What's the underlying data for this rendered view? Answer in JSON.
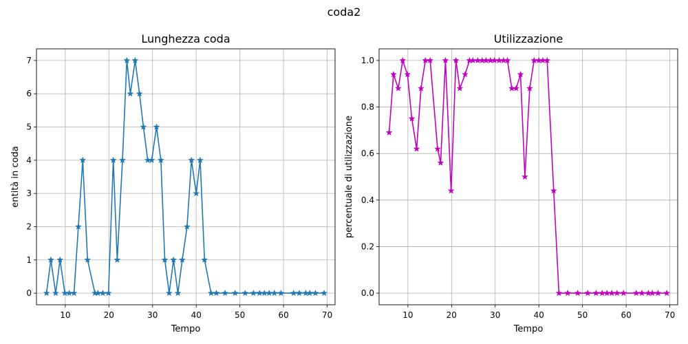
{
  "figure_title": "coda2",
  "colors": {
    "left_series": "#1f77b4",
    "right_series": "#bf00bf",
    "grid": "#b0b0b0"
  },
  "chart_data": [
    {
      "type": "line",
      "marker": "star",
      "title": "Lunghezza coda",
      "xlabel": "Tempo",
      "ylabel": "entità in coda",
      "xlim": [
        3.4,
        71.8
      ],
      "ylim": [
        -0.35,
        7.35
      ],
      "xticks": [
        10,
        20,
        30,
        40,
        50,
        60,
        70
      ],
      "xtick_labels": [
        "10",
        "20",
        "30",
        "40",
        "50",
        "60",
        "70"
      ],
      "yticks": [
        0,
        1,
        2,
        3,
        4,
        5,
        6,
        7
      ],
      "ytick_labels": [
        "0",
        "1",
        "2",
        "3",
        "4",
        "5",
        "6",
        "7"
      ],
      "grid": true,
      "series": [
        {
          "color": "#1f77b4",
          "x": [
            5.7,
            6.7,
            7.8,
            8.8,
            9.9,
            10.9,
            12.0,
            13.0,
            14.0,
            15.1,
            16.8,
            17.5,
            18.6,
            19.9,
            21.0,
            21.9,
            23.1,
            24.1,
            24.9,
            26.0,
            27.0,
            27.9,
            28.9,
            29.8,
            30.9,
            31.9,
            32.8,
            33.8,
            34.8,
            35.8,
            36.8,
            37.9,
            38.9,
            40.0,
            40.9,
            41.9,
            43.4,
            44.6,
            46.6,
            48.9,
            51.2,
            53.1,
            54.5,
            55.6,
            56.7,
            57.9,
            59.4,
            62.3,
            63.6,
            65.1,
            66.0,
            67.3,
            69.3
          ],
          "y": [
            0,
            1,
            0,
            1,
            0,
            0,
            0,
            2,
            4,
            1,
            0,
            0,
            0,
            0,
            4,
            1,
            4,
            7,
            6,
            7,
            6,
            5,
            4,
            4,
            5,
            4,
            1,
            0,
            1,
            0,
            1,
            2,
            4,
            3,
            4,
            1,
            0,
            0,
            0,
            0,
            0,
            0,
            0,
            0,
            0,
            0,
            0,
            0,
            0,
            0,
            0,
            0,
            0
          ]
        }
      ]
    },
    {
      "type": "line",
      "marker": "star",
      "title": "Utilizzazione",
      "xlabel": "Tempo",
      "ylabel": "percentuale di utilizzazione",
      "xlim": [
        3.4,
        71.8
      ],
      "ylim": [
        -0.05,
        1.05
      ],
      "xticks": [
        10,
        20,
        30,
        40,
        50,
        60,
        70
      ],
      "xtick_labels": [
        "10",
        "20",
        "30",
        "40",
        "50",
        "60",
        "70"
      ],
      "yticks": [
        0.0,
        0.2,
        0.4,
        0.6,
        0.8,
        1.0
      ],
      "ytick_labels": [
        "0.0",
        "0.2",
        "0.4",
        "0.6",
        "0.8",
        "1.0"
      ],
      "grid": true,
      "series": [
        {
          "color": "#bf00bf",
          "x": [
            5.7,
            6.7,
            7.8,
            8.8,
            9.9,
            10.9,
            12.0,
            13.0,
            14.0,
            15.1,
            16.8,
            17.5,
            18.6,
            19.9,
            21.0,
            21.9,
            23.1,
            24.1,
            24.9,
            26.0,
            27.0,
            27.9,
            28.9,
            29.8,
            30.9,
            31.9,
            32.8,
            33.8,
            34.8,
            35.8,
            36.8,
            37.9,
            38.9,
            40.0,
            40.9,
            41.9,
            43.4,
            44.6,
            46.6,
            48.9,
            51.2,
            53.1,
            54.5,
            55.6,
            56.7,
            57.9,
            59.4,
            62.3,
            63.6,
            65.1,
            66.0,
            67.3,
            69.3
          ],
          "y": [
            0.69,
            0.94,
            0.88,
            1.0,
            0.94,
            0.75,
            0.62,
            0.88,
            1.0,
            1.0,
            0.62,
            0.56,
            1.0,
            0.44,
            1.0,
            0.88,
            0.94,
            1.0,
            1.0,
            1.0,
            1.0,
            1.0,
            1.0,
            1.0,
            1.0,
            1.0,
            1.0,
            0.88,
            0.88,
            0.94,
            0.5,
            0.88,
            1.0,
            1.0,
            1.0,
            1.0,
            0.44,
            0,
            0,
            0,
            0,
            0,
            0,
            0,
            0,
            0,
            0,
            0,
            0,
            0,
            0,
            0,
            0
          ]
        }
      ]
    }
  ]
}
